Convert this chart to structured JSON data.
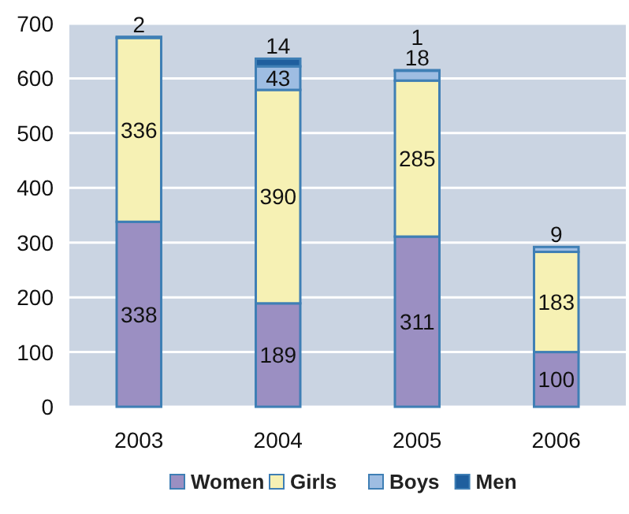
{
  "chart_data": {
    "type": "bar",
    "stacked": true,
    "categories": [
      "2003",
      "2004",
      "2005",
      "2006"
    ],
    "series": [
      {
        "name": "Women",
        "color": "#9b8fc2",
        "values": [
          338,
          189,
          311,
          100
        ]
      },
      {
        "name": "Girls",
        "color": "#f6f1b4",
        "values": [
          336,
          390,
          285,
          183
        ]
      },
      {
        "name": "Boys",
        "color": "#9ebde2",
        "values": [
          2,
          43,
          18,
          9
        ]
      },
      {
        "name": "Men",
        "color": "#1f5f9e",
        "values": [
          null,
          14,
          1,
          null
        ]
      }
    ],
    "ylim": [
      0,
      700
    ],
    "yticks": [
      0,
      100,
      200,
      300,
      400,
      500,
      600,
      700
    ],
    "grid": "y",
    "legend": "bottom",
    "data_labels": true
  }
}
